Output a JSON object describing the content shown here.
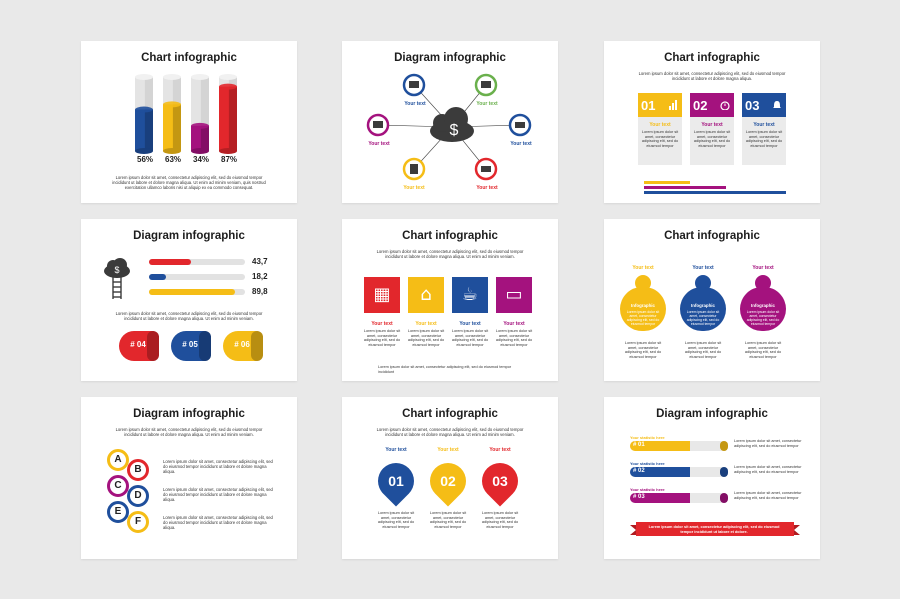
{
  "colors": {
    "blue": "#1f4f9c",
    "yellow": "#f5bd16",
    "magenta": "#a4127e",
    "red": "#e2272c",
    "gray": "#ebebeb",
    "dark": "#3b3b3b"
  },
  "lorem_long": "Lorem ipsum dolor sit amet, consectetur adipiscing elit, sed do eiusmod tempor incididunt ut labore et dolore magna aliqua. Ut enim ad minim veniam,",
  "lorem_short": "Lorem ipsum dolor sit amet, consectetur adipiscing elit, sed do eiusmod tempor",
  "your_text": "Your text",
  "slides": [
    {
      "title": "Chart infographic",
      "bars": [
        {
          "label": "56%",
          "value": 56,
          "color": "blue"
        },
        {
          "label": "63%",
          "value": 63,
          "color": "yellow"
        },
        {
          "label": "34%",
          "value": 34,
          "color": "magenta"
        },
        {
          "label": "87%",
          "value": 87,
          "color": "red"
        }
      ],
      "text": "Lorem ipsum dolor sit amet, consectetur adipiscing elit, sed do eiusmod tempor incididunt ut labore et dolore magna aliqua. Ut enim ad minim veniam, quis nostrud exercitation ullamco laboris nisi ut aliquip ex ea commodo consequat."
    },
    {
      "title": "Diagram infographic",
      "labels": [
        "Your text",
        "Your text",
        "Your text",
        "Your text",
        "Your text",
        "Your text"
      ],
      "center_icon": "cloud-dollar-icon"
    },
    {
      "title": "Chart infographic",
      "text": "Lorem ipsum dolor sit amet, consectetur adipiscing elit, sed do eiusmod tempor incididunt ut labore et dolore magna aliqua.",
      "cards": [
        {
          "num": "01",
          "icon": "bar-chart-icon",
          "label": "Your text",
          "desc": "Lorem ipsum dolor sit amet, consectetur adipiscing elit, sed do eiusmod tempor"
        },
        {
          "num": "02",
          "icon": "stopwatch-icon",
          "label": "Your text",
          "desc": "Lorem ipsum dolor sit amet, consectetur adipiscing elit, sed do eiusmod tempor"
        },
        {
          "num": "03",
          "icon": "bell-icon",
          "label": "Your text",
          "desc": "Lorem ipsum dolor sit amet, consectetur adipiscing elit, sed do eiusmod tempor"
        }
      ]
    },
    {
      "title": "Diagram infographic",
      "progress": [
        {
          "label": "43,7",
          "value": 0.437,
          "color": "red"
        },
        {
          "label": "18,2",
          "value": 0.182,
          "color": "blue"
        },
        {
          "label": "89,8",
          "value": 0.898,
          "color": "yellow"
        }
      ],
      "text": "Lorem ipsum dolor sit amet, consectetur adipiscing elit, sed do eiusmod tempor incididunt ut labore et dolore magna aliqua. Ut enim ad minim veniam.",
      "tags": [
        {
          "label": "# 04",
          "color": "red"
        },
        {
          "label": "# 05",
          "color": "blue"
        },
        {
          "label": "# 06",
          "color": "yellow"
        }
      ]
    },
    {
      "title": "Chart infographic",
      "text": "Lorem ipsum dolor sit amet, consectetur adipiscing elit, sed do eiusmod tempor incididunt ut labore et dolore magna aliqua. Ut enim ad minim veniam.",
      "tiles": [
        {
          "icon": "calendar-icon",
          "color": "red",
          "label": "Your text",
          "desc": "Lorem ipsum dolor sit amet, consectetur adipiscing elit, sed do eiusmod tempor"
        },
        {
          "icon": "house-icon",
          "color": "yellow",
          "label": "Your text",
          "desc": "Lorem ipsum dolor sit amet, consectetur adipiscing elit, sed do eiusmod tempor"
        },
        {
          "icon": "coffee-icon",
          "color": "blue",
          "label": "Your text",
          "desc": "Lorem ipsum dolor sit amet, consectetur adipiscing elit, sed do eiusmod tempor"
        },
        {
          "icon": "laptop-icon",
          "color": "magenta",
          "label": "Your text",
          "desc": "Lorem ipsum dolor sit amet, consectetur adipiscing elit, sed do eiusmod tempor"
        }
      ],
      "footnote": "Lorem ipsum dolor sit amet, consectetur adipiscing elit, sed do eiusmod tempor incididunt"
    },
    {
      "title": "Chart infographic",
      "people": [
        {
          "label": "Your text",
          "inner": "Infographic",
          "desc": "Lorem ipsum dolor sit amet, consectetur adipiscing elit, sed do eiusmod tempor",
          "color": "yellow"
        },
        {
          "label": "Your text",
          "inner": "Infographic",
          "desc": "Lorem ipsum dolor sit amet, consectetur adipiscing elit, sed do eiusmod tempor",
          "color": "blue"
        },
        {
          "label": "Your text",
          "inner": "Infographic",
          "desc": "Lorem ipsum dolor sit amet, consectetur adipiscing elit, sed do eiusmod tempor",
          "color": "magenta"
        }
      ]
    },
    {
      "title": "Diagram infographic",
      "text": "Lorem ipsum dolor sit amet, consectetur adipiscing elit, sed do eiusmod tempor incididunt ut labore et dolore magna aliqua. Ut enim ad minim veniam.",
      "letters": [
        {
          "letter": "A",
          "color": "yellow"
        },
        {
          "letter": "B",
          "color": "red"
        },
        {
          "letter": "C",
          "color": "magenta"
        },
        {
          "letter": "D",
          "color": "blue"
        },
        {
          "letter": "E",
          "color": "blue"
        },
        {
          "letter": "F",
          "color": "yellow"
        }
      ],
      "items": [
        "Lorem ipsum dolor sit amet, consectetur adipiscing elit, sed do eiusmod tempor incididunt ut labore et dolore magna aliqua.",
        "Lorem ipsum dolor sit amet, consectetur adipiscing elit, sed do eiusmod tempor incididunt ut labore et dolore magna aliqua.",
        "Lorem ipsum dolor sit amet, consectetur adipiscing elit, sed do eiusmod tempor incididunt ut labore et dolore magna aliqua."
      ]
    },
    {
      "title": "Chart infographic",
      "text": "Lorem ipsum dolor sit amet, consectetur adipiscing elit, sed do eiusmod tempor incididunt ut labore et dolore magna aliqua. Ut enim ad minim veniam.",
      "drops": [
        {
          "num": "01",
          "label": "Your text",
          "desc": "Lorem ipsum dolor sit amet, consectetur adipiscing elit, sed do eiusmod tempor",
          "color": "blue"
        },
        {
          "num": "02",
          "label": "Your text",
          "desc": "Lorem ipsum dolor sit amet, consectetur adipiscing elit, sed do eiusmod tempor",
          "color": "yellow"
        },
        {
          "num": "03",
          "label": "Your text",
          "desc": "Lorem ipsum dolor sit amet, consectetur adipiscing elit, sed do eiusmod tempor",
          "color": "red"
        }
      ]
    },
    {
      "title": "Diagram infographic",
      "rows": [
        {
          "head": "Your statistic here",
          "tag": "# 01",
          "desc": "Lorem ipsum dolor sit amet, consectetur adipiscing elit, sed do eiusmod tempor",
          "color": "yellow"
        },
        {
          "head": "Your statistic here",
          "tag": "# 02",
          "desc": "Lorem ipsum dolor sit amet, consectetur adipiscing elit, sed do eiusmod tempor",
          "color": "blue"
        },
        {
          "head": "Your statistic here",
          "tag": "# 03",
          "desc": "Lorem ipsum dolor sit amet, consectetur adipiscing elit, sed do eiusmod tempor",
          "color": "magenta"
        }
      ],
      "banner": "Lorem ipsum dolor sit amet, consectetur adipiscing elit, sed do eiusmod tempor incididunt ut labore et dolore."
    }
  ]
}
